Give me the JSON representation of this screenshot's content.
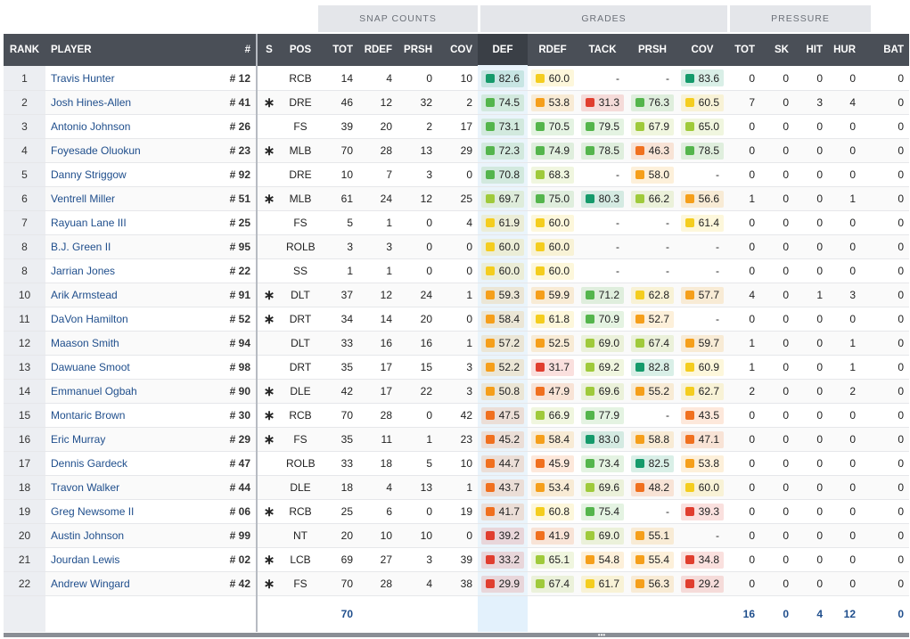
{
  "group_headers": [
    "SNAP COUNTS",
    "GRADES",
    "PRESSURE"
  ],
  "columns": [
    "RANK",
    "PLAYER",
    "#",
    "S",
    "POS",
    "TOT",
    "RDEF",
    "PRSH",
    "COV",
    "DEF",
    "RDEF",
    "TACK",
    "PRSH",
    "COV",
    "TOT",
    "SK",
    "HIT",
    "HUR",
    "BAT"
  ],
  "starter_marker": "∗",
  "dash": "-",
  "grade_colors": {
    "90+": "#1a7d5b",
    "80": "#159a6b",
    "70": "#54b54c",
    "65": "#9fca3b",
    "60": "#f4cd1f",
    "50": "#f59f1b",
    "40": "#f0701f",
    "0": "#e03e2f"
  },
  "rows": [
    {
      "rank": "1",
      "player": "Travis Hunter",
      "jersey": "# 12",
      "s": false,
      "pos": "RCB",
      "tot": "14",
      "rdef": "4",
      "prsh": "0",
      "cov": "10",
      "g_def": "82.6",
      "g_rdef": "60.0",
      "g_tack": "-",
      "g_prsh": "-",
      "g_cov": "83.6",
      "p_tot": "0",
      "p_sk": "0",
      "p_hit": "0",
      "p_hur": "0",
      "p_bat": "0"
    },
    {
      "rank": "2",
      "player": "Josh Hines-Allen",
      "jersey": "# 41",
      "s": true,
      "pos": "DRE",
      "tot": "46",
      "rdef": "12",
      "prsh": "32",
      "cov": "2",
      "g_def": "74.5",
      "g_rdef": "53.8",
      "g_tack": "31.3",
      "g_prsh": "76.3",
      "g_cov": "60.5",
      "p_tot": "7",
      "p_sk": "0",
      "p_hit": "3",
      "p_hur": "4",
      "p_bat": "0"
    },
    {
      "rank": "3",
      "player": "Antonio Johnson",
      "jersey": "# 26",
      "s": false,
      "pos": "FS",
      "tot": "39",
      "rdef": "20",
      "prsh": "2",
      "cov": "17",
      "g_def": "73.1",
      "g_rdef": "70.5",
      "g_tack": "79.5",
      "g_prsh": "67.9",
      "g_cov": "65.0",
      "p_tot": "0",
      "p_sk": "0",
      "p_hit": "0",
      "p_hur": "0",
      "p_bat": "0"
    },
    {
      "rank": "4",
      "player": "Foyesade Oluokun",
      "jersey": "# 23",
      "s": true,
      "pos": "MLB",
      "tot": "70",
      "rdef": "28",
      "prsh": "13",
      "cov": "29",
      "g_def": "72.3",
      "g_rdef": "74.9",
      "g_tack": "78.5",
      "g_prsh": "46.3",
      "g_cov": "78.5",
      "p_tot": "0",
      "p_sk": "0",
      "p_hit": "0",
      "p_hur": "0",
      "p_bat": "0"
    },
    {
      "rank": "5",
      "player": "Danny Striggow",
      "jersey": "# 92",
      "s": false,
      "pos": "DRE",
      "tot": "10",
      "rdef": "7",
      "prsh": "3",
      "cov": "0",
      "g_def": "70.8",
      "g_rdef": "68.3",
      "g_tack": "-",
      "g_prsh": "58.0",
      "g_cov": "-",
      "p_tot": "0",
      "p_sk": "0",
      "p_hit": "0",
      "p_hur": "0",
      "p_bat": "0"
    },
    {
      "rank": "6",
      "player": "Ventrell Miller",
      "jersey": "# 51",
      "s": true,
      "pos": "MLB",
      "tot": "61",
      "rdef": "24",
      "prsh": "12",
      "cov": "25",
      "g_def": "69.7",
      "g_rdef": "75.0",
      "g_tack": "80.3",
      "g_prsh": "66.2",
      "g_cov": "56.6",
      "p_tot": "1",
      "p_sk": "0",
      "p_hit": "0",
      "p_hur": "1",
      "p_bat": "0"
    },
    {
      "rank": "7",
      "player": "Rayuan Lane III",
      "jersey": "# 25",
      "s": false,
      "pos": "FS",
      "tot": "5",
      "rdef": "1",
      "prsh": "0",
      "cov": "4",
      "g_def": "61.9",
      "g_rdef": "60.0",
      "g_tack": "-",
      "g_prsh": "-",
      "g_cov": "61.4",
      "p_tot": "0",
      "p_sk": "0",
      "p_hit": "0",
      "p_hur": "0",
      "p_bat": "0"
    },
    {
      "rank": "8",
      "player": "B.J. Green II",
      "jersey": "# 95",
      "s": false,
      "pos": "ROLB",
      "tot": "3",
      "rdef": "3",
      "prsh": "0",
      "cov": "0",
      "g_def": "60.0",
      "g_rdef": "60.0",
      "g_tack": "-",
      "g_prsh": "-",
      "g_cov": "-",
      "p_tot": "0",
      "p_sk": "0",
      "p_hit": "0",
      "p_hur": "0",
      "p_bat": "0"
    },
    {
      "rank": "8",
      "player": "Jarrian Jones",
      "jersey": "# 22",
      "s": false,
      "pos": "SS",
      "tot": "1",
      "rdef": "1",
      "prsh": "0",
      "cov": "0",
      "g_def": "60.0",
      "g_rdef": "60.0",
      "g_tack": "-",
      "g_prsh": "-",
      "g_cov": "-",
      "p_tot": "0",
      "p_sk": "0",
      "p_hit": "0",
      "p_hur": "0",
      "p_bat": "0"
    },
    {
      "rank": "10",
      "player": "Arik Armstead",
      "jersey": "# 91",
      "s": true,
      "pos": "DLT",
      "tot": "37",
      "rdef": "12",
      "prsh": "24",
      "cov": "1",
      "g_def": "59.3",
      "g_rdef": "59.9",
      "g_tack": "71.2",
      "g_prsh": "62.8",
      "g_cov": "57.7",
      "p_tot": "4",
      "p_sk": "0",
      "p_hit": "1",
      "p_hur": "3",
      "p_bat": "0"
    },
    {
      "rank": "11",
      "player": "DaVon Hamilton",
      "jersey": "# 52",
      "s": true,
      "pos": "DRT",
      "tot": "34",
      "rdef": "14",
      "prsh": "20",
      "cov": "0",
      "g_def": "58.4",
      "g_rdef": "61.8",
      "g_tack": "70.9",
      "g_prsh": "52.7",
      "g_cov": "-",
      "p_tot": "0",
      "p_sk": "0",
      "p_hit": "0",
      "p_hur": "0",
      "p_bat": "0"
    },
    {
      "rank": "12",
      "player": "Maason Smith",
      "jersey": "# 94",
      "s": false,
      "pos": "DLT",
      "tot": "33",
      "rdef": "16",
      "prsh": "16",
      "cov": "1",
      "g_def": "57.2",
      "g_rdef": "52.5",
      "g_tack": "69.0",
      "g_prsh": "67.4",
      "g_cov": "59.7",
      "p_tot": "1",
      "p_sk": "0",
      "p_hit": "0",
      "p_hur": "1",
      "p_bat": "0"
    },
    {
      "rank": "13",
      "player": "Dawuane Smoot",
      "jersey": "# 98",
      "s": false,
      "pos": "DRT",
      "tot": "35",
      "rdef": "17",
      "prsh": "15",
      "cov": "3",
      "g_def": "52.2",
      "g_rdef": "31.7",
      "g_tack": "69.2",
      "g_prsh": "82.8",
      "g_cov": "60.9",
      "p_tot": "1",
      "p_sk": "0",
      "p_hit": "0",
      "p_hur": "1",
      "p_bat": "0"
    },
    {
      "rank": "14",
      "player": "Emmanuel Ogbah",
      "jersey": "# 90",
      "s": true,
      "pos": "DLE",
      "tot": "42",
      "rdef": "17",
      "prsh": "22",
      "cov": "3",
      "g_def": "50.8",
      "g_rdef": "47.9",
      "g_tack": "69.6",
      "g_prsh": "55.2",
      "g_cov": "62.7",
      "p_tot": "2",
      "p_sk": "0",
      "p_hit": "0",
      "p_hur": "2",
      "p_bat": "0"
    },
    {
      "rank": "15",
      "player": "Montaric Brown",
      "jersey": "# 30",
      "s": true,
      "pos": "RCB",
      "tot": "70",
      "rdef": "28",
      "prsh": "0",
      "cov": "42",
      "g_def": "47.5",
      "g_rdef": "66.9",
      "g_tack": "77.9",
      "g_prsh": "-",
      "g_cov": "43.5",
      "p_tot": "0",
      "p_sk": "0",
      "p_hit": "0",
      "p_hur": "0",
      "p_bat": "0"
    },
    {
      "rank": "16",
      "player": "Eric Murray",
      "jersey": "# 29",
      "s": true,
      "pos": "FS",
      "tot": "35",
      "rdef": "11",
      "prsh": "1",
      "cov": "23",
      "g_def": "45.2",
      "g_rdef": "58.4",
      "g_tack": "83.0",
      "g_prsh": "58.8",
      "g_cov": "47.1",
      "p_tot": "0",
      "p_sk": "0",
      "p_hit": "0",
      "p_hur": "0",
      "p_bat": "0"
    },
    {
      "rank": "17",
      "player": "Dennis Gardeck",
      "jersey": "# 47",
      "s": false,
      "pos": "ROLB",
      "tot": "33",
      "rdef": "18",
      "prsh": "5",
      "cov": "10",
      "g_def": "44.7",
      "g_rdef": "45.9",
      "g_tack": "73.4",
      "g_prsh": "82.5",
      "g_cov": "53.8",
      "p_tot": "0",
      "p_sk": "0",
      "p_hit": "0",
      "p_hur": "0",
      "p_bat": "0"
    },
    {
      "rank": "18",
      "player": "Travon Walker",
      "jersey": "# 44",
      "s": false,
      "pos": "DLE",
      "tot": "18",
      "rdef": "4",
      "prsh": "13",
      "cov": "1",
      "g_def": "43.7",
      "g_rdef": "53.4",
      "g_tack": "69.6",
      "g_prsh": "48.2",
      "g_cov": "60.0",
      "p_tot": "0",
      "p_sk": "0",
      "p_hit": "0",
      "p_hur": "0",
      "p_bat": "0"
    },
    {
      "rank": "19",
      "player": "Greg Newsome II",
      "jersey": "# 06",
      "s": true,
      "pos": "RCB",
      "tot": "25",
      "rdef": "6",
      "prsh": "0",
      "cov": "19",
      "g_def": "41.7",
      "g_rdef": "60.8",
      "g_tack": "75.4",
      "g_prsh": "-",
      "g_cov": "39.3",
      "p_tot": "0",
      "p_sk": "0",
      "p_hit": "0",
      "p_hur": "0",
      "p_bat": "0"
    },
    {
      "rank": "20",
      "player": "Austin Johnson",
      "jersey": "# 99",
      "s": false,
      "pos": "NT",
      "tot": "20",
      "rdef": "10",
      "prsh": "10",
      "cov": "0",
      "g_def": "39.2",
      "g_rdef": "41.9",
      "g_tack": "69.0",
      "g_prsh": "55.1",
      "g_cov": "-",
      "p_tot": "0",
      "p_sk": "0",
      "p_hit": "0",
      "p_hur": "0",
      "p_bat": "0"
    },
    {
      "rank": "21",
      "player": "Jourdan Lewis",
      "jersey": "# 02",
      "s": true,
      "pos": "LCB",
      "tot": "69",
      "rdef": "27",
      "prsh": "3",
      "cov": "39",
      "g_def": "33.2",
      "g_rdef": "65.1",
      "g_tack": "54.8",
      "g_prsh": "55.4",
      "g_cov": "34.8",
      "p_tot": "0",
      "p_sk": "0",
      "p_hit": "0",
      "p_hur": "0",
      "p_bat": "0"
    },
    {
      "rank": "22",
      "player": "Andrew Wingard",
      "jersey": "# 42",
      "s": true,
      "pos": "FS",
      "tot": "70",
      "rdef": "28",
      "prsh": "4",
      "cov": "38",
      "g_def": "29.9",
      "g_rdef": "67.4",
      "g_tack": "61.7",
      "g_prsh": "56.3",
      "g_cov": "29.2",
      "p_tot": "0",
      "p_sk": "0",
      "p_hit": "0",
      "p_hur": "0",
      "p_bat": "0"
    }
  ],
  "totals": {
    "tot": "70",
    "p_tot": "16",
    "p_sk": "0",
    "p_hit": "4",
    "p_hur": "12",
    "p_bat": "0"
  }
}
